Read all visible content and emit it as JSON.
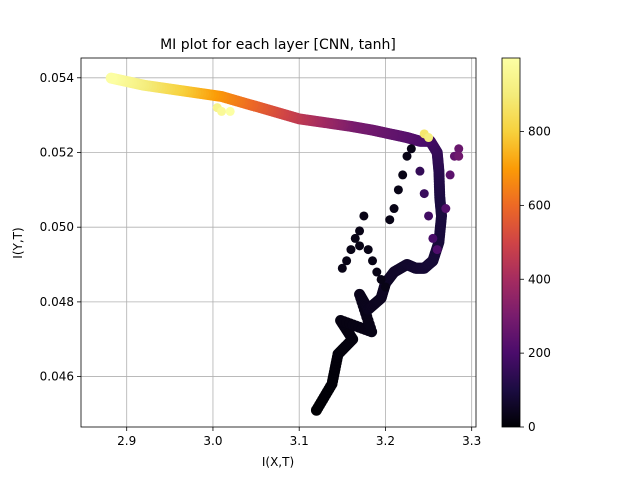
{
  "chart_data": {
    "type": "scatter",
    "title": "MI plot for each layer [CNN, tanh]",
    "xlabel": "I(X,T)",
    "ylabel": "I(Y,T)",
    "xlim": [
      2.847,
      3.305
    ],
    "ylim": [
      0.04465,
      0.05453
    ],
    "xticks": [
      2.9,
      3.0,
      3.1,
      3.2,
      3.3
    ],
    "xtick_labels": [
      "2.9",
      "3.0",
      "3.1",
      "3.2",
      "3.3"
    ],
    "yticks": [
      0.046,
      0.048,
      0.05,
      0.052,
      0.054
    ],
    "ytick_labels": [
      "0.046",
      "0.048",
      "0.050",
      "0.052",
      "0.054"
    ],
    "grid": true,
    "colormap": "inferno",
    "colorbar": {
      "range": [
        0,
        999
      ],
      "ticks": [
        0,
        200,
        400,
        600,
        800
      ],
      "tick_labels": [
        "0",
        "200",
        "400",
        "600",
        "800"
      ]
    },
    "paths": [
      {
        "description": "epochs 0-100",
        "t_range": [
          0,
          100
        ],
        "points": [
          [
            3.12,
            0.0451
          ],
          [
            3.138,
            0.0458
          ],
          [
            3.145,
            0.0466
          ],
          [
            3.162,
            0.047
          ],
          [
            3.148,
            0.0475
          ],
          [
            3.184,
            0.0472
          ],
          [
            3.17,
            0.0482
          ],
          [
            3.18,
            0.0478
          ],
          [
            3.195,
            0.0481
          ],
          [
            3.2,
            0.0485
          ],
          [
            3.21,
            0.0488
          ],
          [
            3.225,
            0.049
          ],
          [
            3.235,
            0.0489
          ],
          [
            3.245,
            0.0489
          ],
          [
            3.255,
            0.0491
          ],
          [
            3.262,
            0.0496
          ],
          [
            3.265,
            0.0503
          ],
          [
            3.263,
            0.0508
          ]
        ]
      },
      {
        "description": "epochs 100-300",
        "t_range": [
          100,
          300
        ],
        "points": [
          [
            3.263,
            0.0508
          ],
          [
            3.262,
            0.0515
          ],
          [
            3.26,
            0.052
          ],
          [
            3.252,
            0.0523
          ],
          [
            3.24,
            0.0523
          ],
          [
            3.225,
            0.0524
          ],
          [
            3.205,
            0.0525
          ],
          [
            3.185,
            0.0526
          ],
          [
            3.16,
            0.0527
          ]
        ]
      },
      {
        "description": "epochs 300-900",
        "t_range": [
          300,
          900
        ],
        "points": [
          [
            3.16,
            0.0527
          ],
          [
            3.13,
            0.0528
          ],
          [
            3.1,
            0.0529
          ],
          [
            3.07,
            0.0531
          ],
          [
            3.04,
            0.0533
          ],
          [
            3.01,
            0.0535
          ],
          [
            2.98,
            0.0536
          ],
          [
            2.95,
            0.0537
          ],
          [
            2.92,
            0.0538
          ]
        ]
      },
      {
        "description": "epochs 900-999",
        "t_range": [
          900,
          999
        ],
        "points": [
          [
            2.92,
            0.0538
          ],
          [
            2.9,
            0.0539
          ],
          [
            2.88,
            0.054
          ]
        ]
      }
    ],
    "scatter_clusters": [
      {
        "description": "early loop dots",
        "t": 30,
        "points": [
          [
            3.15,
            0.0489
          ],
          [
            3.155,
            0.0491
          ],
          [
            3.16,
            0.0494
          ],
          [
            3.165,
            0.0497
          ],
          [
            3.17,
            0.0499
          ],
          [
            3.175,
            0.0503
          ],
          [
            3.17,
            0.0495
          ],
          [
            3.18,
            0.0494
          ],
          [
            3.185,
            0.0491
          ],
          [
            3.19,
            0.0488
          ],
          [
            3.195,
            0.0486
          ],
          [
            3.2,
            0.0484
          ],
          [
            3.205,
            0.0502
          ],
          [
            3.21,
            0.0505
          ],
          [
            3.215,
            0.051
          ],
          [
            3.22,
            0.0514
          ],
          [
            3.225,
            0.0519
          ],
          [
            3.23,
            0.0521
          ]
        ]
      },
      {
        "description": "second loop",
        "t_range": [
          150,
          280
        ],
        "points": [
          [
            3.24,
            0.0515
          ],
          [
            3.245,
            0.0509
          ],
          [
            3.25,
            0.0503
          ],
          [
            3.255,
            0.0497
          ],
          [
            3.26,
            0.0494
          ],
          [
            3.27,
            0.0505
          ],
          [
            3.275,
            0.0514
          ],
          [
            3.28,
            0.0519
          ],
          [
            3.285,
            0.0521
          ],
          [
            3.285,
            0.0519
          ]
        ]
      },
      {
        "description": "late cluster",
        "t_range": [
          880,
          999
        ],
        "points": [
          [
            3.245,
            0.0525
          ],
          [
            3.25,
            0.0524
          ],
          [
            3.005,
            0.0532
          ],
          [
            3.01,
            0.0531
          ],
          [
            3.02,
            0.0531
          ]
        ]
      }
    ]
  }
}
